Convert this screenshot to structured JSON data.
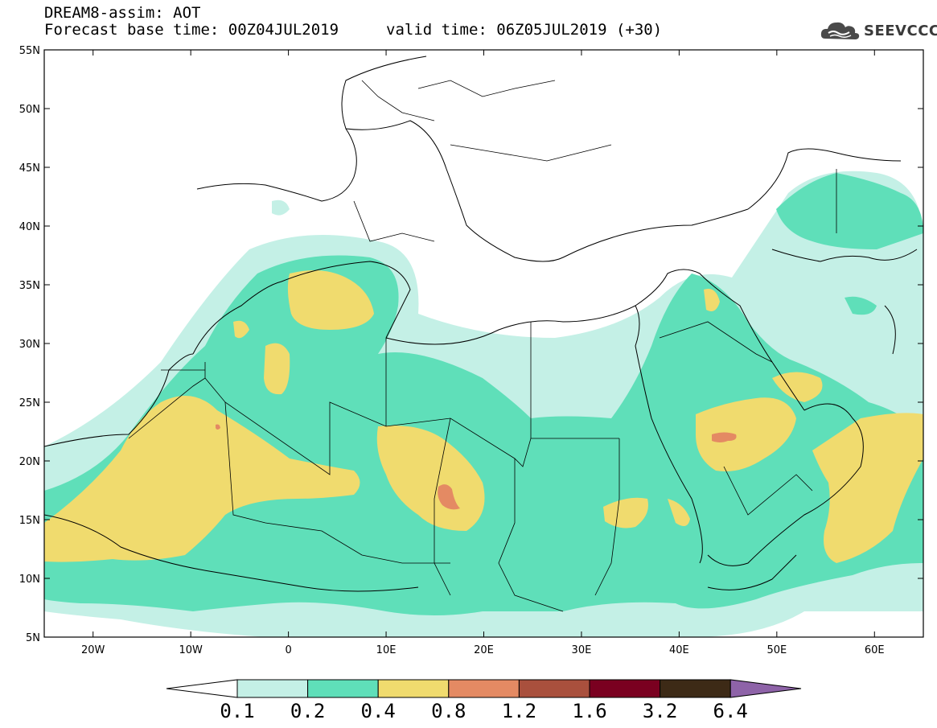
{
  "header": {
    "title_line_1": "DREAM8-assim: AOT",
    "title_line_2": "Forecast base time: 00Z04JUL2019",
    "valid_time": "valid time: 06Z05JUL2019 (+30)",
    "logo_text": "SEEVCCC"
  },
  "map": {
    "lon_range": [
      -25,
      65
    ],
    "lat_range": [
      5,
      55
    ],
    "lat_ticks": [
      {
        "value": 55,
        "label": "55N"
      },
      {
        "value": 50,
        "label": "50N"
      },
      {
        "value": 45,
        "label": "45N"
      },
      {
        "value": 40,
        "label": "40N"
      },
      {
        "value": 35,
        "label": "35N"
      },
      {
        "value": 30,
        "label": "30N"
      },
      {
        "value": 25,
        "label": "25N"
      },
      {
        "value": 20,
        "label": "20N"
      },
      {
        "value": 15,
        "label": "15N"
      },
      {
        "value": 10,
        "label": "10N"
      },
      {
        "value": 5,
        "label": "5N"
      }
    ],
    "lon_ticks": [
      {
        "value": -20,
        "label": "20W"
      },
      {
        "value": -10,
        "label": "10W"
      },
      {
        "value": 0,
        "label": "0"
      },
      {
        "value": 10,
        "label": "10E"
      },
      {
        "value": 20,
        "label": "20E"
      },
      {
        "value": 30,
        "label": "30E"
      },
      {
        "value": 40,
        "label": "40E"
      },
      {
        "value": 50,
        "label": "50E"
      },
      {
        "value": 60,
        "label": "60E"
      }
    ],
    "aot_fields": [
      {
        "level": 0.1,
        "color": "#c4f0e6"
      },
      {
        "level": 0.2,
        "color": "#5fdfb9"
      },
      {
        "level": 0.4,
        "color": "#f0db6e"
      },
      {
        "level": 0.8,
        "color": "#e48a63"
      }
    ]
  },
  "colorbar": {
    "labels": [
      "0.1",
      "0.2",
      "0.4",
      "0.8",
      "1.2",
      "1.6",
      "3.2",
      "6.4"
    ],
    "colors": [
      "#c4f0e6",
      "#5fdfb9",
      "#f0db6e",
      "#e48a63",
      "#a9503d",
      "#7a0020",
      "#3d2a16"
    ],
    "under_color": "#ffffff",
    "over_color": "#8e63a8"
  }
}
